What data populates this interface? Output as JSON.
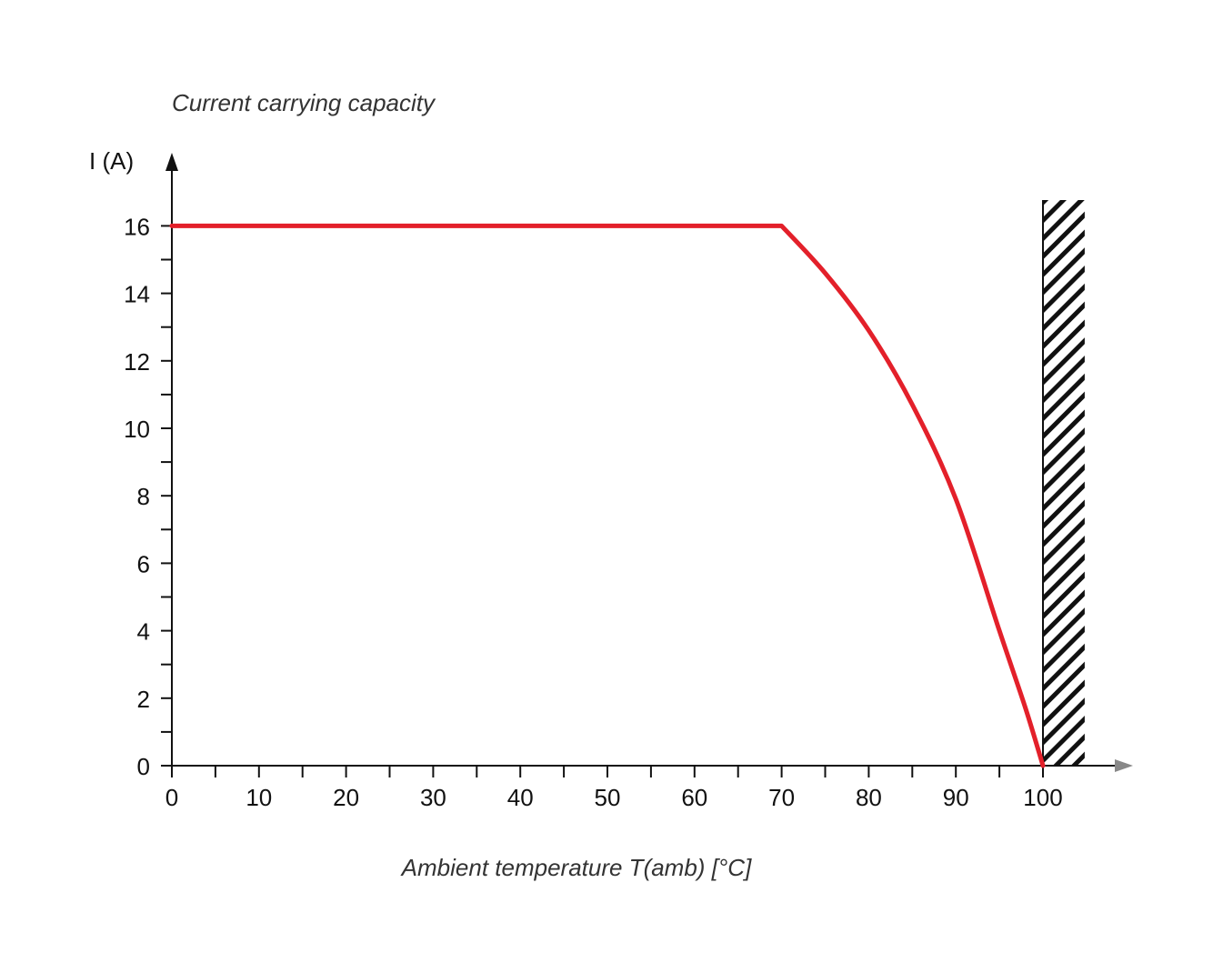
{
  "chart_data": {
    "type": "line",
    "title": "Current carrying capacity",
    "xlabel": "Ambient temperature T(amb) [°C]",
    "ylabel": "I (A)",
    "xlim": [
      0,
      105
    ],
    "ylim": [
      0,
      17
    ],
    "x_ticks": [
      0,
      10,
      20,
      30,
      40,
      50,
      60,
      70,
      80,
      90,
      100
    ],
    "y_ticks": [
      0,
      2,
      4,
      6,
      8,
      10,
      12,
      14,
      16
    ],
    "grid": false,
    "series": [
      {
        "color": "#e3202a",
        "x": [
          0,
          70,
          75,
          80,
          85,
          90,
          95,
          98,
          100
        ],
        "y": [
          16,
          16,
          14.6,
          12.9,
          10.7,
          7.9,
          4.0,
          1.7,
          0
        ]
      }
    ],
    "shaded_region": {
      "x_from": 100,
      "x_to": 105,
      "pattern": "diagonal-hatch"
    },
    "colors": {
      "axis": "#111111",
      "x_arrow": "#888888",
      "series": "#e3202a"
    }
  }
}
